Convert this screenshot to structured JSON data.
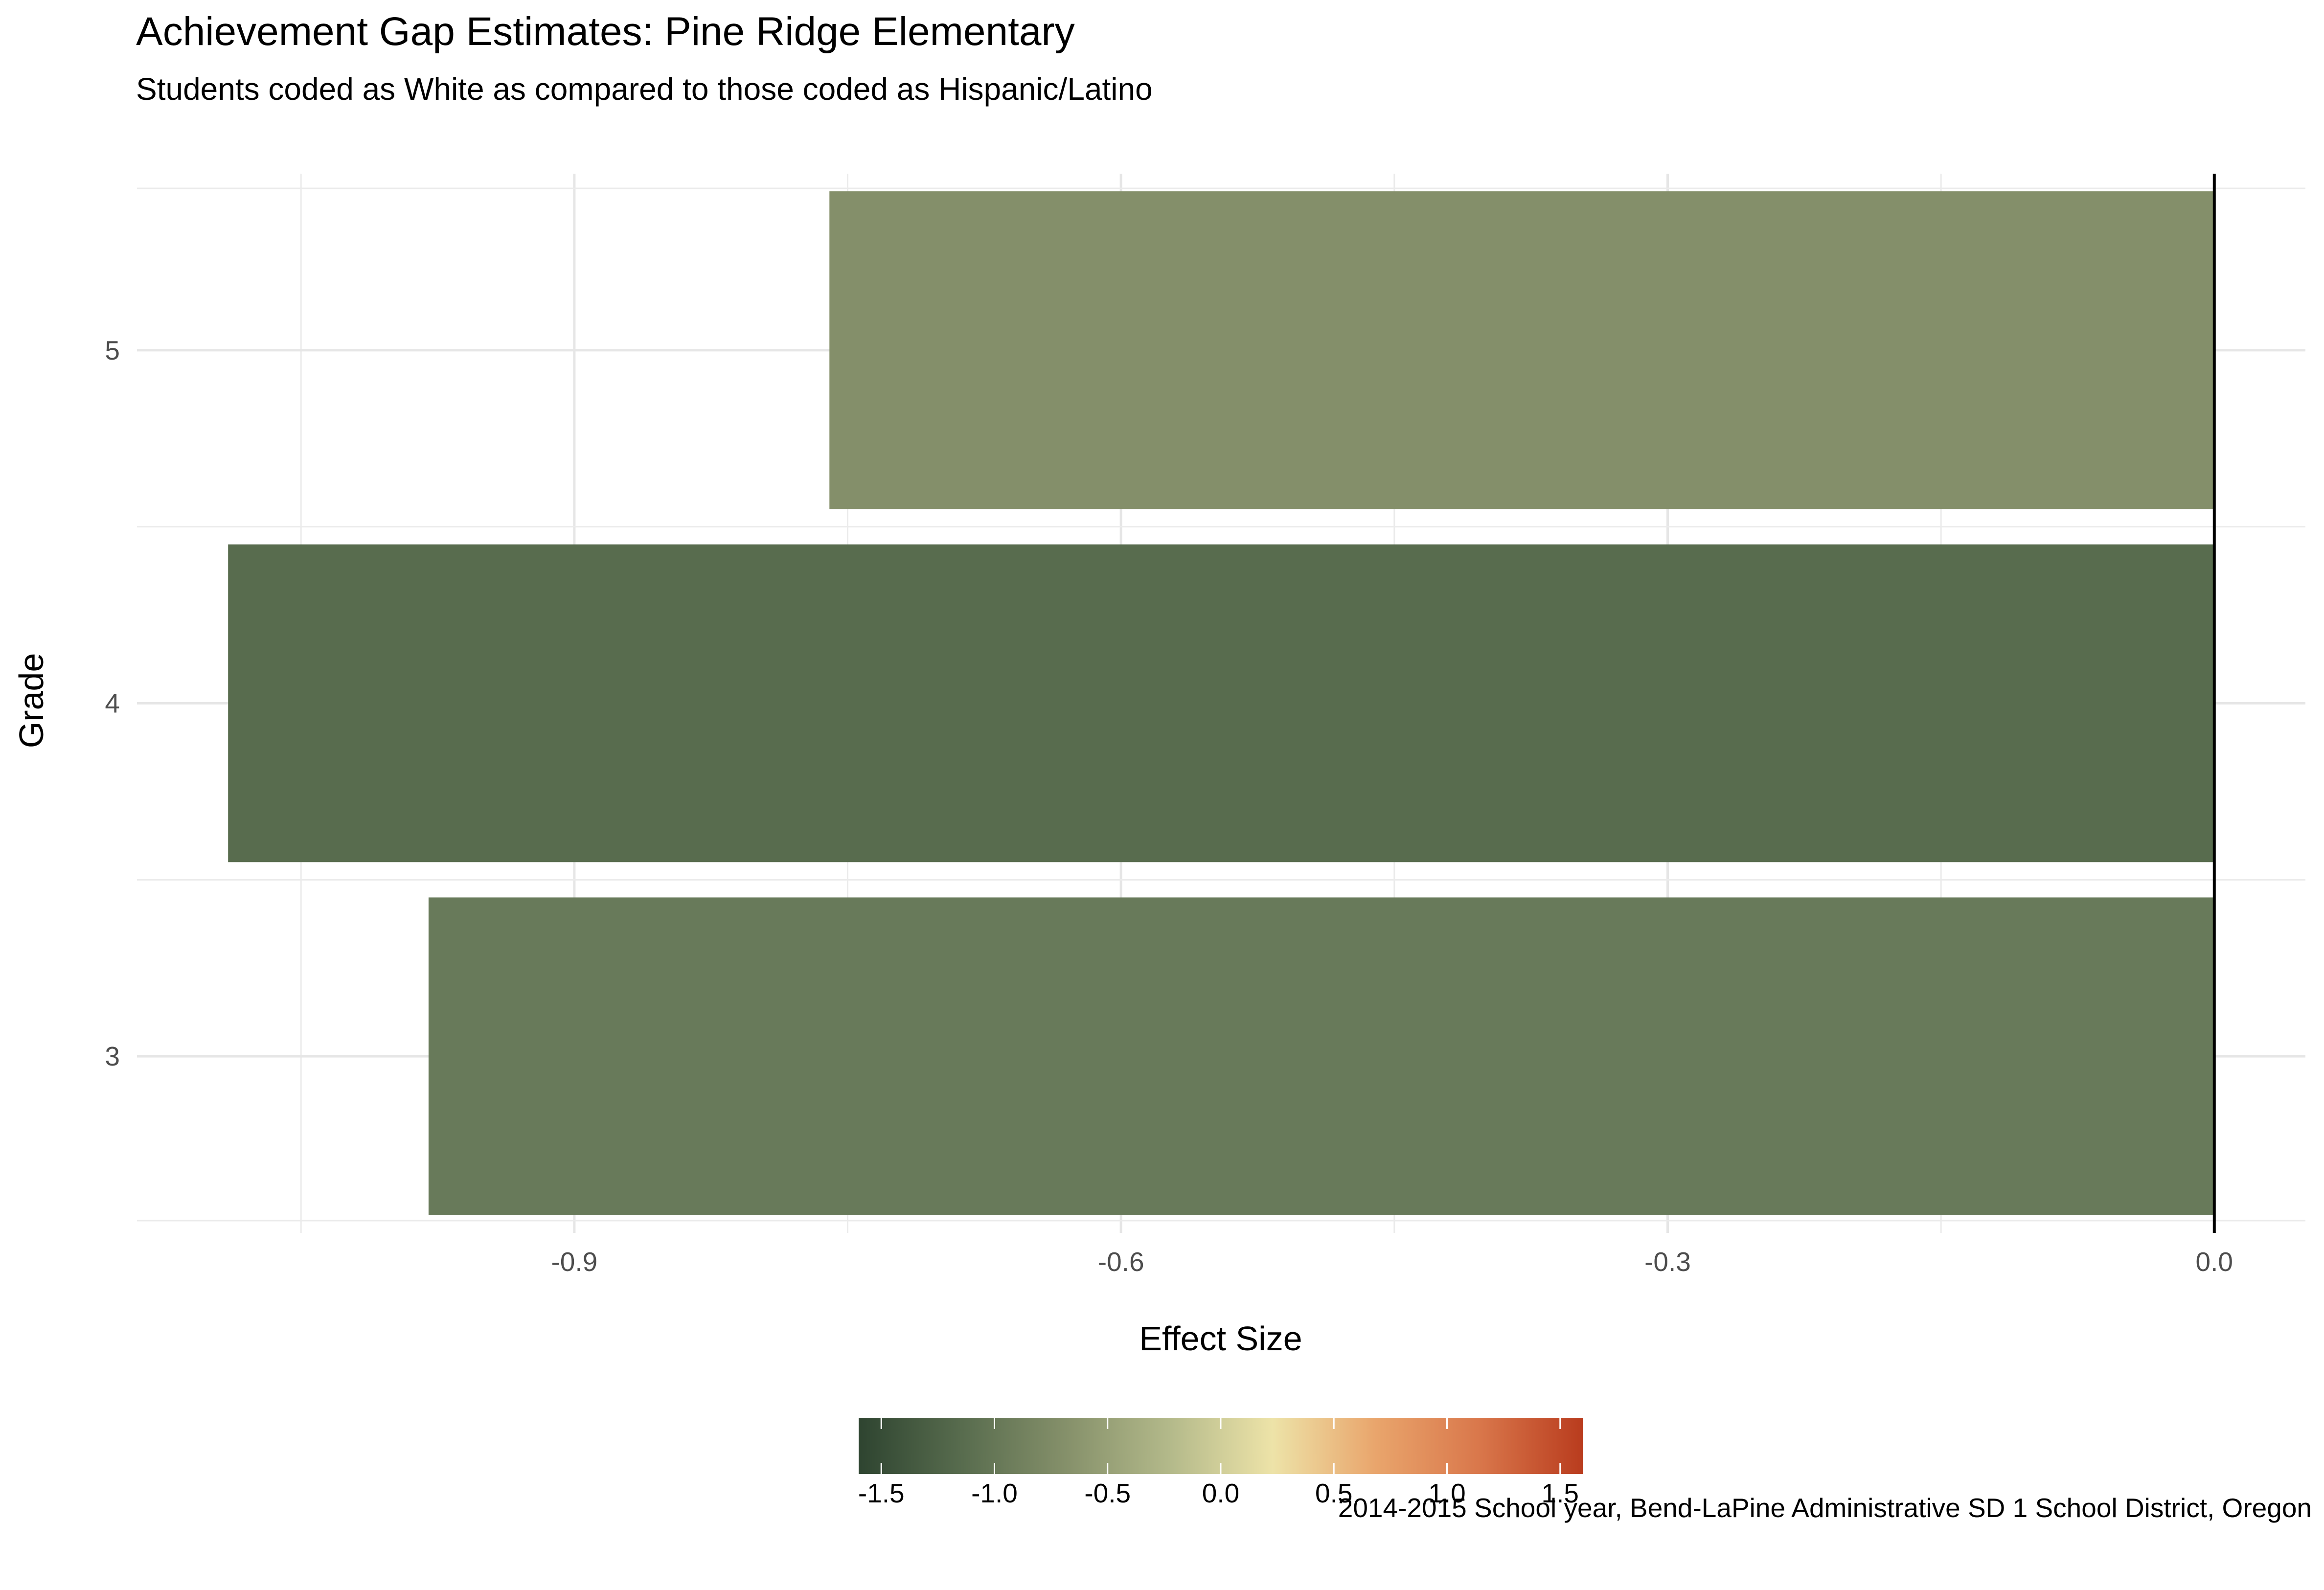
{
  "chart_data": {
    "type": "bar",
    "orientation": "horizontal",
    "title": "Achievement Gap Estimates: Pine Ridge Elementary",
    "subtitle": "Students coded as White as compared to those coded as Hispanic/Latino",
    "caption": "2014-2015 School year, Bend-LaPine Administrative SD 1 School District, Oregon",
    "xlabel": "Effect Size",
    "ylabel": "Grade",
    "categories": [
      "3",
      "4",
      "5"
    ],
    "values": [
      -0.98,
      -1.09,
      -0.76
    ],
    "xlim": [
      -1.14,
      0.05
    ],
    "x_ticks": [
      -0.9,
      -0.6,
      -0.3,
      0.0
    ],
    "x_tick_labels": [
      "-0.9",
      "-0.6",
      "-0.3",
      "0.0"
    ],
    "zero_line": true,
    "grid": true,
    "legend": {
      "type": "colorbar",
      "placement": "bottom",
      "range": [
        -1.6,
        1.6
      ],
      "ticks": [
        -1.5,
        -1.0,
        -0.5,
        0.0,
        0.5,
        1.0,
        1.5
      ],
      "tick_labels": [
        "-1.5",
        "-1.0",
        "-0.5",
        "0.0",
        "0.5",
        "1.0",
        "1.5"
      ],
      "colors": [
        "#2e4430",
        "#586c4e",
        "#85906a",
        "#b3b98a",
        "#ede3a8",
        "#e9a56c",
        "#d9774b",
        "#b93c1e"
      ]
    },
    "bar_colors": [
      "#687a5a",
      "#586c4e",
      "#848f6a"
    ]
  }
}
